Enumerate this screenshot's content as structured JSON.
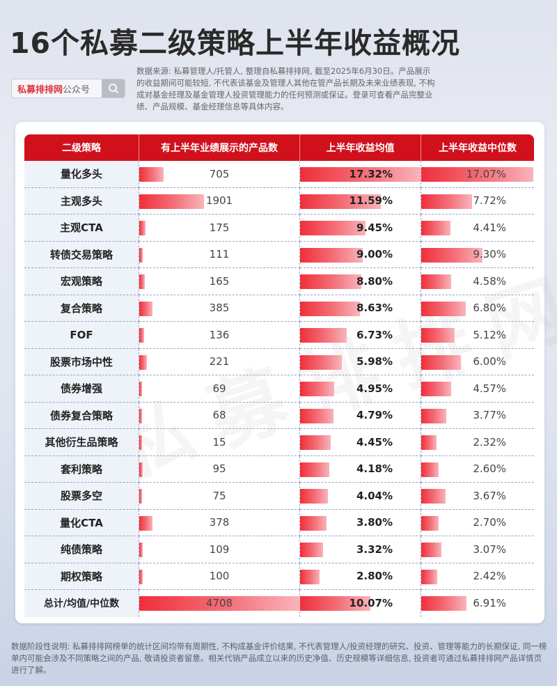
{
  "header": {
    "title": "16个私募二级策略上半年收益概况",
    "search_brand": "私募排排网",
    "search_suffix": "公众号",
    "search_icon": "search-icon",
    "source_note": "数据来源: 私募管理人/托管人, 整理自私募排排网, 截至2025年6月30日。产品展示的收益期间可能较短, 不代表该基金及管理人其他在管产品长期及未来业绩表现, 不构成对基金经理及基金管理人投资管理能力的任何预测或保证。登录可查看产品完整业绩、产品规模、基金经理信息等具体内容。"
  },
  "watermark": "私募排排网",
  "table": {
    "columns": [
      "二级策略",
      "有上半年业绩展示的产品数",
      "上半年收益均值",
      "上半年收益中位数"
    ],
    "rows": [
      {
        "name": "量化多头",
        "count": "705",
        "mean": "17.32%",
        "median": "17.07%"
      },
      {
        "name": "主观多头",
        "count": "1901",
        "mean": "11.59%",
        "median": "7.72%"
      },
      {
        "name": "主观CTA",
        "count": "175",
        "mean": "9.45%",
        "median": "4.41%"
      },
      {
        "name": "转债交易策略",
        "count": "111",
        "mean": "9.00%",
        "median": "9.30%"
      },
      {
        "name": "宏观策略",
        "count": "165",
        "mean": "8.80%",
        "median": "4.58%"
      },
      {
        "name": "复合策略",
        "count": "385",
        "mean": "8.63%",
        "median": "6.80%"
      },
      {
        "name": "FOF",
        "count": "136",
        "mean": "6.73%",
        "median": "5.12%"
      },
      {
        "name": "股票市场中性",
        "count": "221",
        "mean": "5.98%",
        "median": "6.00%"
      },
      {
        "name": "债券增强",
        "count": "69",
        "mean": "4.95%",
        "median": "4.57%"
      },
      {
        "name": "债券复合策略",
        "count": "68",
        "mean": "4.79%",
        "median": "3.77%"
      },
      {
        "name": "其他衍生品策略",
        "count": "15",
        "mean": "4.45%",
        "median": "2.32%"
      },
      {
        "name": "套利策略",
        "count": "95",
        "mean": "4.18%",
        "median": "2.60%"
      },
      {
        "name": "股票多空",
        "count": "75",
        "mean": "4.04%",
        "median": "3.67%"
      },
      {
        "name": "量化CTA",
        "count": "378",
        "mean": "3.80%",
        "median": "2.70%"
      },
      {
        "name": "纯债策略",
        "count": "109",
        "mean": "3.32%",
        "median": "3.07%"
      },
      {
        "name": "期权策略",
        "count": "100",
        "mean": "2.80%",
        "median": "2.42%"
      },
      {
        "name": "总计/均值/中位数",
        "count": "4708",
        "mean": "10.07%",
        "median": "6.91%"
      }
    ]
  },
  "footer": {
    "note": "数据阶段性说明: 私募排排网榜单的统计区间均带有周期性, 不构成基金评价结果, 不代表管理人/投资经理的研究、投资、管理等能力的长期保证, 同一榜单内可能会涉及不同策略之间的产品, 敬请投资者留意。相关代销产品成立以来的历史净值、历史规模等详细信息, 投资者可通过私募排排网产品详情页进行了解。"
  },
  "colors": {
    "header_red": "#d0111b",
    "bar_start": "#ef2f3a",
    "bar_end": "#f9b4bb",
    "name_cell_bg": "#eef2f9",
    "brand_red": "#e0323a"
  },
  "chart_data": {
    "type": "table",
    "title": "16个私募二级策略上半年收益概况",
    "categories": [
      "量化多头",
      "主观多头",
      "主观CTA",
      "转债交易策略",
      "宏观策略",
      "复合策略",
      "FOF",
      "股票市场中性",
      "债券增强",
      "债券复合策略",
      "其他衍生品策略",
      "套利策略",
      "股票多空",
      "量化CTA",
      "纯债策略",
      "期权策略",
      "总计/均值/中位数"
    ],
    "series": [
      {
        "name": "有上半年业绩展示的产品数",
        "values": [
          705,
          1901,
          175,
          111,
          165,
          385,
          136,
          221,
          69,
          68,
          15,
          95,
          75,
          378,
          109,
          100,
          4708
        ]
      },
      {
        "name": "上半年收益均值(%)",
        "values": [
          17.32,
          11.59,
          9.45,
          9.0,
          8.8,
          8.63,
          6.73,
          5.98,
          4.95,
          4.79,
          4.45,
          4.18,
          4.04,
          3.8,
          3.32,
          2.8,
          10.07
        ]
      },
      {
        "name": "上半年收益中位数(%)",
        "values": [
          17.07,
          7.72,
          4.41,
          9.3,
          4.58,
          6.8,
          5.12,
          6.0,
          4.57,
          3.77,
          2.32,
          2.6,
          3.67,
          2.7,
          3.07,
          2.42,
          6.91
        ]
      }
    ],
    "bar_scale_max": {
      "count": 4708,
      "mean": 17.32,
      "median": 17.07
    }
  }
}
